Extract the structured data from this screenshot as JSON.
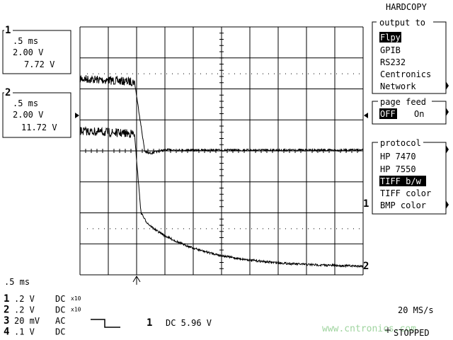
{
  "header": {
    "title": "HARDCOPY"
  },
  "menus": [
    {
      "title": "output to",
      "items": [
        "Flpy",
        "GPIB",
        "RS232",
        "Centronics",
        "Network"
      ]
    },
    {
      "title": "page feed",
      "items": [
        "OFF",
        "On"
      ]
    },
    {
      "title": "protocol",
      "items": [
        "HP 7470",
        "HP 7550",
        "TIFF b/w",
        "TIFF color",
        "BMP color"
      ]
    }
  ],
  "channel_boxes": [
    {
      "label": "1",
      "lines": [
        ".5 ms",
        "2.00 V",
        "7.72 V"
      ]
    },
    {
      "label": "2",
      "lines": [
        ".5 ms",
        "2.00 V",
        "11.72 V"
      ]
    }
  ],
  "trace_markers": [
    "1",
    "2"
  ],
  "timebase": ".5 ms",
  "channels": [
    {
      "label": "1",
      "scale": ".2 V",
      "coupling": "DC",
      "probe": "x10"
    },
    {
      "label": "2",
      "scale": ".2 V",
      "coupling": "DC",
      "probe": "x10"
    },
    {
      "label": "3",
      "scale": "20 mV",
      "coupling": "AC"
    },
    {
      "label": "4",
      "scale": ".1 V",
      "coupling": "DC"
    }
  ],
  "trigger": {
    "source": "1",
    "level": "DC 5.96 V"
  },
  "sample_rate": "20 MS/s",
  "status": "STOPPED",
  "watermark": "www.cntronics.com"
}
